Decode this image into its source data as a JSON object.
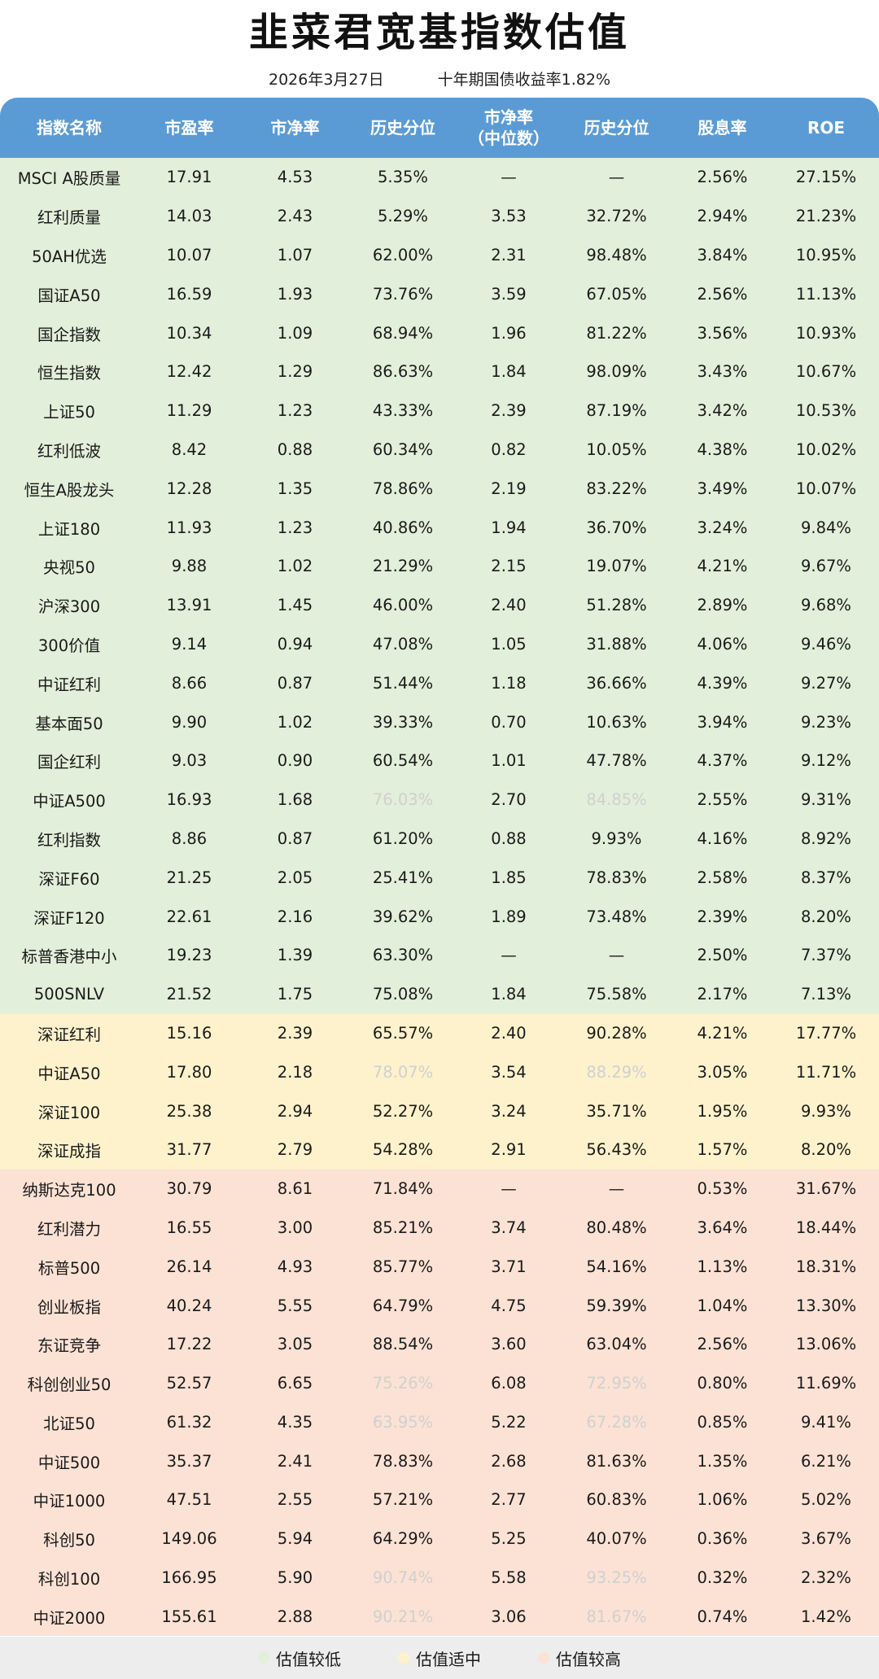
{
  "title": "韭菜君宽基指数估值",
  "subtitle": {
    "date": "2026年3月27日",
    "bond_yield": "十年期国债收益率1.82%"
  },
  "headers": [
    "指数名称",
    "市盈率",
    "市净率",
    "历史分位",
    "市净率",
    "（中位数）",
    "历史分位",
    "股息率",
    "ROE"
  ],
  "colors": {
    "header": "#5b9bd5",
    "low": "#e2efda",
    "mid": "#fdf2cc",
    "high": "#fbe2d5",
    "faded_text": "#d0d0d0"
  },
  "rows": [
    {
      "cat": "low",
      "name": "MSCI A股质量",
      "pe": "17.91",
      "pb": "4.53",
      "pct1": "5.35%",
      "pbm": "—",
      "pct2": "—",
      "div": "2.56%",
      "roe": "27.15%",
      "f1": false,
      "f2": false
    },
    {
      "cat": "low",
      "name": "红利质量",
      "pe": "14.03",
      "pb": "2.43",
      "pct1": "5.29%",
      "pbm": "3.53",
      "pct2": "32.72%",
      "div": "2.94%",
      "roe": "21.23%",
      "f1": false,
      "f2": false
    },
    {
      "cat": "low",
      "name": "50AH优选",
      "pe": "10.07",
      "pb": "1.07",
      "pct1": "62.00%",
      "pbm": "2.31",
      "pct2": "98.48%",
      "div": "3.84%",
      "roe": "10.95%",
      "f1": false,
      "f2": false
    },
    {
      "cat": "low",
      "name": "国证A50",
      "pe": "16.59",
      "pb": "1.93",
      "pct1": "73.76%",
      "pbm": "3.59",
      "pct2": "67.05%",
      "div": "2.56%",
      "roe": "11.13%",
      "f1": false,
      "f2": false
    },
    {
      "cat": "low",
      "name": "国企指数",
      "pe": "10.34",
      "pb": "1.09",
      "pct1": "68.94%",
      "pbm": "1.96",
      "pct2": "81.22%",
      "div": "3.56%",
      "roe": "10.93%",
      "f1": false,
      "f2": false
    },
    {
      "cat": "low",
      "name": "恒生指数",
      "pe": "12.42",
      "pb": "1.29",
      "pct1": "86.63%",
      "pbm": "1.84",
      "pct2": "98.09%",
      "div": "3.43%",
      "roe": "10.67%",
      "f1": false,
      "f2": false
    },
    {
      "cat": "low",
      "name": "上证50",
      "pe": "11.29",
      "pb": "1.23",
      "pct1": "43.33%",
      "pbm": "2.39",
      "pct2": "87.19%",
      "div": "3.42%",
      "roe": "10.53%",
      "f1": false,
      "f2": false
    },
    {
      "cat": "low",
      "name": "红利低波",
      "pe": "8.42",
      "pb": "0.88",
      "pct1": "60.34%",
      "pbm": "0.82",
      "pct2": "10.05%",
      "div": "4.38%",
      "roe": "10.02%",
      "f1": false,
      "f2": false
    },
    {
      "cat": "low",
      "name": "恒生A股龙头",
      "pe": "12.28",
      "pb": "1.35",
      "pct1": "78.86%",
      "pbm": "2.19",
      "pct2": "83.22%",
      "div": "3.49%",
      "roe": "10.07%",
      "f1": false,
      "f2": false
    },
    {
      "cat": "low",
      "name": "上证180",
      "pe": "11.93",
      "pb": "1.23",
      "pct1": "40.86%",
      "pbm": "1.94",
      "pct2": "36.70%",
      "div": "3.24%",
      "roe": "9.84%",
      "f1": false,
      "f2": false
    },
    {
      "cat": "low",
      "name": "央视50",
      "pe": "9.88",
      "pb": "1.02",
      "pct1": "21.29%",
      "pbm": "2.15",
      "pct2": "19.07%",
      "div": "4.21%",
      "roe": "9.67%",
      "f1": false,
      "f2": false
    },
    {
      "cat": "low",
      "name": "沪深300",
      "pe": "13.91",
      "pb": "1.45",
      "pct1": "46.00%",
      "pbm": "2.40",
      "pct2": "51.28%",
      "div": "2.89%",
      "roe": "9.68%",
      "f1": false,
      "f2": false
    },
    {
      "cat": "low",
      "name": "300价值",
      "pe": "9.14",
      "pb": "0.94",
      "pct1": "47.08%",
      "pbm": "1.05",
      "pct2": "31.88%",
      "div": "4.06%",
      "roe": "9.46%",
      "f1": false,
      "f2": false
    },
    {
      "cat": "low",
      "name": "中证红利",
      "pe": "8.66",
      "pb": "0.87",
      "pct1": "51.44%",
      "pbm": "1.18",
      "pct2": "36.66%",
      "div": "4.39%",
      "roe": "9.27%",
      "f1": false,
      "f2": false
    },
    {
      "cat": "low",
      "name": "基本面50",
      "pe": "9.90",
      "pb": "1.02",
      "pct1": "39.33%",
      "pbm": "0.70",
      "pct2": "10.63%",
      "div": "3.94%",
      "roe": "9.23%",
      "f1": false,
      "f2": false
    },
    {
      "cat": "low",
      "name": "国企红利",
      "pe": "9.03",
      "pb": "0.90",
      "pct1": "60.54%",
      "pbm": "1.01",
      "pct2": "47.78%",
      "div": "4.37%",
      "roe": "9.12%",
      "f1": false,
      "f2": false
    },
    {
      "cat": "low",
      "name": "中证A500",
      "pe": "16.93",
      "pb": "1.68",
      "pct1": "76.03%",
      "pbm": "2.70",
      "pct2": "84.85%",
      "div": "2.55%",
      "roe": "9.31%",
      "f1": true,
      "f2": true
    },
    {
      "cat": "low",
      "name": "红利指数",
      "pe": "8.86",
      "pb": "0.87",
      "pct1": "61.20%",
      "pbm": "0.88",
      "pct2": "9.93%",
      "div": "4.16%",
      "roe": "8.92%",
      "f1": false,
      "f2": false
    },
    {
      "cat": "low",
      "name": "深证F60",
      "pe": "21.25",
      "pb": "2.05",
      "pct1": "25.41%",
      "pbm": "1.85",
      "pct2": "78.83%",
      "div": "2.58%",
      "roe": "8.37%",
      "f1": false,
      "f2": false
    },
    {
      "cat": "low",
      "name": "深证F120",
      "pe": "22.61",
      "pb": "2.16",
      "pct1": "39.62%",
      "pbm": "1.89",
      "pct2": "73.48%",
      "div": "2.39%",
      "roe": "8.20%",
      "f1": false,
      "f2": false
    },
    {
      "cat": "low",
      "name": "标普香港中小",
      "pe": "19.23",
      "pb": "1.39",
      "pct1": "63.30%",
      "pbm": "—",
      "pct2": "—",
      "div": "2.50%",
      "roe": "7.37%",
      "f1": false,
      "f2": false
    },
    {
      "cat": "low",
      "name": "500SNLV",
      "pe": "21.52",
      "pb": "1.75",
      "pct1": "75.08%",
      "pbm": "1.84",
      "pct2": "75.58%",
      "div": "2.17%",
      "roe": "7.13%",
      "f1": false,
      "f2": false
    },
    {
      "cat": "mid",
      "name": "深证红利",
      "pe": "15.16",
      "pb": "2.39",
      "pct1": "65.57%",
      "pbm": "2.40",
      "pct2": "90.28%",
      "div": "4.21%",
      "roe": "17.77%",
      "f1": false,
      "f2": false
    },
    {
      "cat": "mid",
      "name": "中证A50",
      "pe": "17.80",
      "pb": "2.18",
      "pct1": "78.07%",
      "pbm": "3.54",
      "pct2": "88.29%",
      "div": "3.05%",
      "roe": "11.71%",
      "f1": true,
      "f2": true
    },
    {
      "cat": "mid",
      "name": "深证100",
      "pe": "25.38",
      "pb": "2.94",
      "pct1": "52.27%",
      "pbm": "3.24",
      "pct2": "35.71%",
      "div": "1.95%",
      "roe": "9.93%",
      "f1": false,
      "f2": false
    },
    {
      "cat": "mid",
      "name": "深证成指",
      "pe": "31.77",
      "pb": "2.79",
      "pct1": "54.28%",
      "pbm": "2.91",
      "pct2": "56.43%",
      "div": "1.57%",
      "roe": "8.20%",
      "f1": false,
      "f2": false
    },
    {
      "cat": "high",
      "name": "纳斯达克100",
      "pe": "30.79",
      "pb": "8.61",
      "pct1": "71.84%",
      "pbm": "—",
      "pct2": "—",
      "div": "0.53%",
      "roe": "31.67%",
      "f1": false,
      "f2": false
    },
    {
      "cat": "high",
      "name": "红利潜力",
      "pe": "16.55",
      "pb": "3.00",
      "pct1": "85.21%",
      "pbm": "3.74",
      "pct2": "80.48%",
      "div": "3.64%",
      "roe": "18.44%",
      "f1": false,
      "f2": false
    },
    {
      "cat": "high",
      "name": "标普500",
      "pe": "26.14",
      "pb": "4.93",
      "pct1": "85.77%",
      "pbm": "3.71",
      "pct2": "54.16%",
      "div": "1.13%",
      "roe": "18.31%",
      "f1": false,
      "f2": false
    },
    {
      "cat": "high",
      "name": "创业板指",
      "pe": "40.24",
      "pb": "5.55",
      "pct1": "64.79%",
      "pbm": "4.75",
      "pct2": "59.39%",
      "div": "1.04%",
      "roe": "13.30%",
      "f1": false,
      "f2": false
    },
    {
      "cat": "high",
      "name": "东证竞争",
      "pe": "17.22",
      "pb": "3.05",
      "pct1": "88.54%",
      "pbm": "3.60",
      "pct2": "63.04%",
      "div": "2.56%",
      "roe": "13.06%",
      "f1": false,
      "f2": false
    },
    {
      "cat": "high",
      "name": "科创创业50",
      "pe": "52.57",
      "pb": "6.65",
      "pct1": "75.26%",
      "pbm": "6.08",
      "pct2": "72.95%",
      "div": "0.80%",
      "roe": "11.69%",
      "f1": true,
      "f2": true
    },
    {
      "cat": "high",
      "name": "北证50",
      "pe": "61.32",
      "pb": "4.35",
      "pct1": "63.95%",
      "pbm": "5.22",
      "pct2": "67.28%",
      "div": "0.85%",
      "roe": "9.41%",
      "f1": true,
      "f2": true
    },
    {
      "cat": "high",
      "name": "中证500",
      "pe": "35.37",
      "pb": "2.41",
      "pct1": "78.83%",
      "pbm": "2.68",
      "pct2": "81.63%",
      "div": "1.35%",
      "roe": "6.21%",
      "f1": false,
      "f2": false
    },
    {
      "cat": "high",
      "name": "中证1000",
      "pe": "47.51",
      "pb": "2.55",
      "pct1": "57.21%",
      "pbm": "2.77",
      "pct2": "60.83%",
      "div": "1.06%",
      "roe": "5.02%",
      "f1": false,
      "f2": false
    },
    {
      "cat": "high",
      "name": "科创50",
      "pe": "149.06",
      "pb": "5.94",
      "pct1": "64.29%",
      "pbm": "5.25",
      "pct2": "40.07%",
      "div": "0.36%",
      "roe": "3.67%",
      "f1": false,
      "f2": false
    },
    {
      "cat": "high",
      "name": "科创100",
      "pe": "166.95",
      "pb": "5.90",
      "pct1": "90.74%",
      "pbm": "5.58",
      "pct2": "93.25%",
      "div": "0.32%",
      "roe": "2.32%",
      "f1": true,
      "f2": true
    },
    {
      "cat": "high",
      "name": "中证2000",
      "pe": "155.61",
      "pb": "2.88",
      "pct1": "90.21%",
      "pbm": "3.06",
      "pct2": "81.67%",
      "div": "0.74%",
      "roe": "1.42%",
      "f1": true,
      "f2": true
    }
  ],
  "legend": [
    {
      "label": "估值较低",
      "color": "#e2efda"
    },
    {
      "label": "估值适中",
      "color": "#fdf2cc"
    },
    {
      "label": "估值较高",
      "color": "#fbe2d5"
    }
  ]
}
